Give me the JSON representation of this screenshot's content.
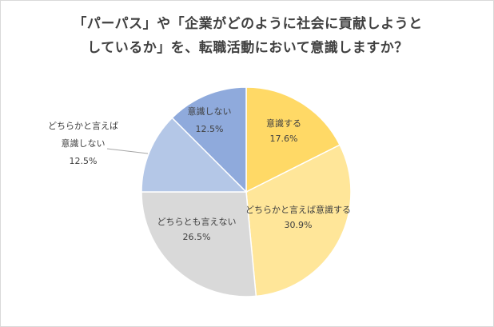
{
  "chart_data": {
    "type": "pie",
    "title_line1": "「パーパス」や「企業がどのように社会に貢献しようと",
    "title_line2": "しているか」を、転職活動において意識しますか？",
    "slices": [
      {
        "label": "意識する",
        "value": 17.6,
        "value_label": "17.6%",
        "color": "#ffd966"
      },
      {
        "label": "どちらかと言えば意識する",
        "value": 30.9,
        "value_label": "30.9%",
        "color": "#ffe699"
      },
      {
        "label": "どちらとも言えない",
        "value": 26.5,
        "value_label": "26.5%",
        "color": "#d9d9d9"
      },
      {
        "label_line1": "どちらかと言えば",
        "label_line2": "意識しない",
        "value": 12.5,
        "value_label": "12.5%",
        "color": "#b4c7e7"
      },
      {
        "label": "意識しない",
        "value": 12.5,
        "value_label": "12.5%",
        "color": "#8faadc"
      }
    ],
    "start": "12 o'clock",
    "direction": "clockwise",
    "slice_border": "#ffffff",
    "leader_line": "#a6a6a6",
    "label_color": "#404040"
  }
}
